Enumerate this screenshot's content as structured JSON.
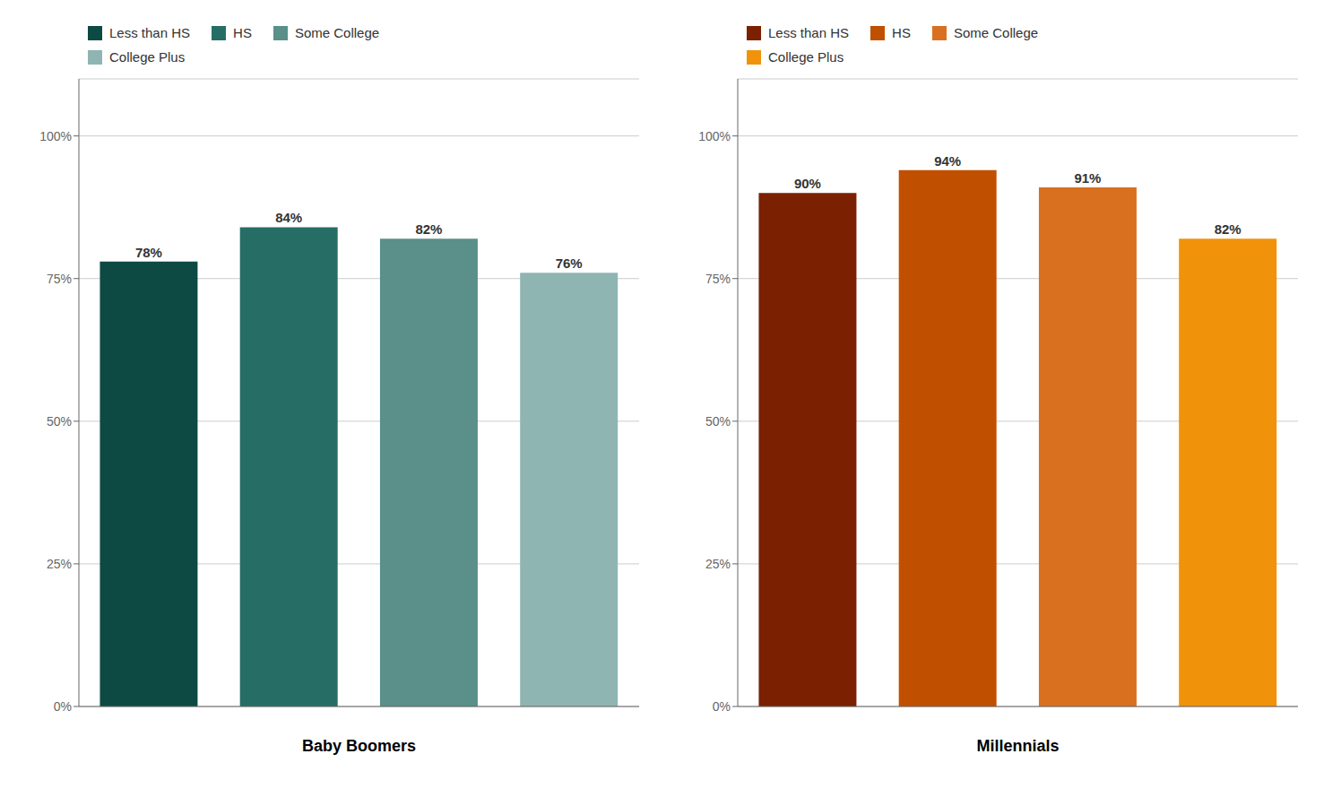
{
  "chart_data": [
    {
      "type": "bar",
      "xlabel": "Baby Boomers",
      "categories": [
        "Less than HS",
        "HS",
        "Some College",
        "College Plus"
      ],
      "values": [
        78,
        84,
        82,
        76
      ],
      "value_labels": [
        "78%",
        "84%",
        "82%",
        "76%"
      ],
      "colors": [
        "#0d4a44",
        "#266e65",
        "#5a8f8a",
        "#8fb5b2"
      ],
      "ylim": [
        0,
        110
      ],
      "yticks": [
        {
          "value": 0,
          "label": "0%"
        },
        {
          "value": 25,
          "label": "25%"
        },
        {
          "value": 50,
          "label": "50%"
        },
        {
          "value": 75,
          "label": "75%"
        },
        {
          "value": 100,
          "label": "100%"
        }
      ],
      "grid": true,
      "legend": "top left",
      "data_labels": true,
      "tick_labels": "y"
    },
    {
      "type": "bar",
      "xlabel": "Millennials",
      "categories": [
        "Less than HS",
        "HS",
        "Some College",
        "College Plus"
      ],
      "values": [
        90,
        94,
        91,
        82
      ],
      "value_labels": [
        "90%",
        "94%",
        "91%",
        "82%"
      ],
      "colors": [
        "#7b2000",
        "#c05000",
        "#d97020",
        "#f0920a"
      ],
      "ylim": [
        0,
        110
      ],
      "yticks": [
        {
          "value": 0,
          "label": "0%"
        },
        {
          "value": 25,
          "label": "25%"
        },
        {
          "value": 50,
          "label": "50%"
        },
        {
          "value": 75,
          "label": "75%"
        },
        {
          "value": 100,
          "label": "100%"
        }
      ],
      "grid": true,
      "legend": "top left",
      "data_labels": true,
      "tick_labels": "y"
    }
  ]
}
